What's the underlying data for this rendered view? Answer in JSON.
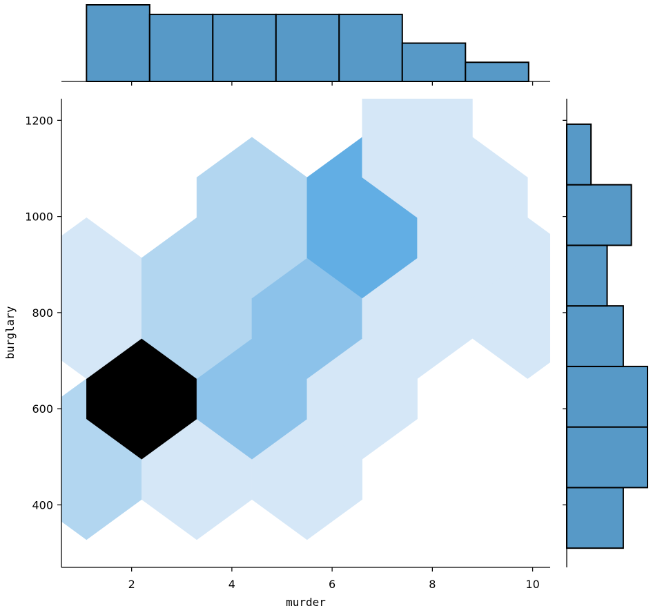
{
  "chart_data": {
    "type": "hexbin-joint",
    "xlabel": "murder",
    "ylabel": "burglary",
    "xlim": [
      0.6,
      10.35
    ],
    "ylim": [
      270,
      1245
    ],
    "x_ticks": [
      2,
      4,
      6,
      8,
      10
    ],
    "y_ticks": [
      400,
      600,
      800,
      1000,
      1200
    ],
    "hex": {
      "grid_x_origin": 1.1,
      "grid_dx": 2.2,
      "grid_y_origin": 160,
      "grid_dy": 335,
      "cells": [
        {
          "col": 0,
          "row": 1,
          "count": 3
        },
        {
          "col": 1,
          "row": 1,
          "count": 1
        },
        {
          "col": 2,
          "row": 1,
          "count": 1
        },
        {
          "col": 0.5,
          "row": 1.5,
          "count": 11
        },
        {
          "col": 1.5,
          "row": 1.5,
          "count": 5
        },
        {
          "col": 2.5,
          "row": 1.5,
          "count": 1
        },
        {
          "col": 0,
          "row": 2,
          "count": 1
        },
        {
          "col": 1,
          "row": 2,
          "count": 3
        },
        {
          "col": 2,
          "row": 2,
          "count": 5
        },
        {
          "col": 3,
          "row": 2,
          "count": 1
        },
        {
          "col": 4,
          "row": 2,
          "count": 1
        },
        {
          "col": 1.5,
          "row": 2.5,
          "count": 3
        },
        {
          "col": 2.5,
          "row": 2.5,
          "count": 8
        },
        {
          "col": 3.5,
          "row": 2.5,
          "count": 1
        },
        {
          "col": 3,
          "row": 3,
          "count": 1
        }
      ],
      "max_count": 11,
      "colors": [
        "#ffffff",
        "#d5e7f7",
        "#b2d6f0",
        "#8cc2ea",
        "#62aee4",
        "#1f6aa5",
        "#000000"
      ]
    },
    "marginal_x": {
      "bin_edges": [
        1.1,
        2.36,
        3.62,
        4.88,
        6.14,
        7.4,
        8.66,
        9.92
      ],
      "counts": [
        8,
        7,
        7,
        7,
        7,
        4,
        2
      ],
      "color": "#5799c7"
    },
    "marginal_y": {
      "bin_edges": [
        310,
        436,
        562,
        688,
        814,
        940,
        1066,
        1192
      ],
      "counts": [
        7,
        10,
        10,
        7,
        5,
        8,
        3
      ],
      "color": "#5799c7"
    }
  }
}
